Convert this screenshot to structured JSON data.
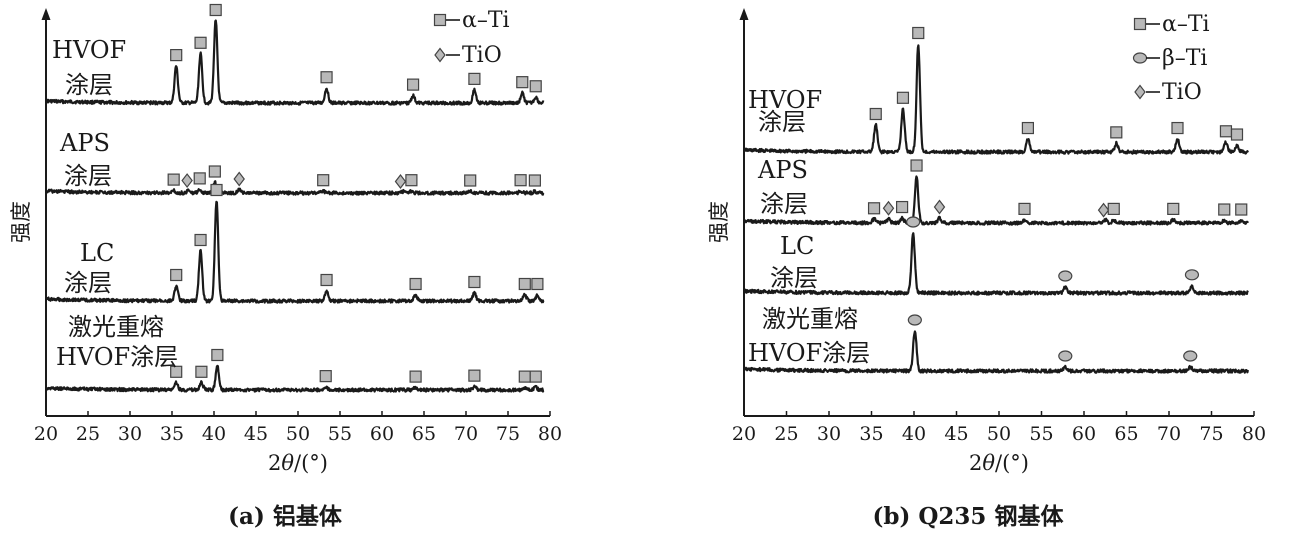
{
  "colors": {
    "ink": "#1a1a1a",
    "marker_fill": "#b9b9b9",
    "marker_stroke": "#444444"
  },
  "chart_data": [
    {
      "type": "line",
      "caption_label": "(a)",
      "caption_text": "铝基体",
      "xlabel_prefix": "2",
      "xlabel_theta": "θ",
      "xlabel_unit": "/(°)",
      "ylabel": "强度",
      "xlim": [
        20,
        80
      ],
      "xticks": [
        "20",
        "25",
        "30",
        "35",
        "40",
        "45",
        "50",
        "55",
        "60",
        "65",
        "70",
        "75",
        "80"
      ],
      "legend": [
        {
          "marker": "square",
          "label": "α–Ti"
        },
        {
          "marker": "diamond",
          "label": "TiO"
        }
      ],
      "series": [
        {
          "label_lines": [
            "HVOF",
            "涂层"
          ],
          "peaks": [
            [
              35.5,
              0.45
            ],
            [
              38.4,
              0.6
            ],
            [
              40.2,
              1.0
            ],
            [
              53.4,
              0.18
            ],
            [
              63.7,
              0.09
            ],
            [
              71.0,
              0.16
            ],
            [
              76.7,
              0.12
            ],
            [
              78.3,
              0.07
            ]
          ],
          "markers": [
            {
              "type": "square",
              "x": 35.5
            },
            {
              "type": "square",
              "x": 38.4
            },
            {
              "type": "square",
              "x": 40.2
            },
            {
              "type": "square",
              "x": 53.4
            },
            {
              "type": "square",
              "x": 63.7
            },
            {
              "type": "square",
              "x": 71.0
            },
            {
              "type": "square",
              "x": 76.7
            },
            {
              "type": "square",
              "x": 78.3
            }
          ]
        },
        {
          "label_lines": [
            "APS",
            "涂层"
          ],
          "peaks": [
            [
              35.2,
              0.08
            ],
            [
              37.0,
              0.08
            ],
            [
              38.3,
              0.12
            ],
            [
              40.1,
              0.35
            ],
            [
              43.0,
              0.1
            ],
            [
              53.0,
              0.06
            ],
            [
              62.5,
              0.05
            ],
            [
              63.5,
              0.06
            ],
            [
              70.5,
              0.05
            ],
            [
              76.5,
              0.06
            ],
            [
              78.2,
              0.05
            ]
          ],
          "markers": [
            {
              "type": "square",
              "x": 35.2
            },
            {
              "type": "diamond",
              "x": 36.8
            },
            {
              "type": "square",
              "x": 38.3
            },
            {
              "type": "square",
              "x": 40.1
            },
            {
              "type": "diamond",
              "x": 43.0
            },
            {
              "type": "square",
              "x": 53.0
            },
            {
              "type": "diamond",
              "x": 62.2
            },
            {
              "type": "square",
              "x": 63.5
            },
            {
              "type": "square",
              "x": 70.5
            },
            {
              "type": "square",
              "x": 76.5
            },
            {
              "type": "square",
              "x": 78.2
            }
          ]
        },
        {
          "label_lines": [
            "LC",
            "涂层"
          ],
          "peaks": [
            [
              35.5,
              0.15
            ],
            [
              38.4,
              0.5
            ],
            [
              40.3,
              1.0
            ],
            [
              53.4,
              0.1
            ],
            [
              64.0,
              0.06
            ],
            [
              71.0,
              0.08
            ],
            [
              77.0,
              0.06
            ],
            [
              78.5,
              0.06
            ]
          ],
          "markers": [
            {
              "type": "square",
              "x": 35.5
            },
            {
              "type": "square",
              "x": 38.4
            },
            {
              "type": "square",
              "x": 40.3
            },
            {
              "type": "square",
              "x": 53.4
            },
            {
              "type": "square",
              "x": 64.0
            },
            {
              "type": "square",
              "x": 71.0
            },
            {
              "type": "square",
              "x": 77.0
            },
            {
              "type": "square",
              "x": 78.5
            }
          ]
        },
        {
          "label_lines": [
            "激光重熔",
            "HVOF涂层"
          ],
          "peaks": [
            [
              35.5,
              0.15
            ],
            [
              38.5,
              0.15
            ],
            [
              40.4,
              0.5
            ],
            [
              53.3,
              0.06
            ],
            [
              64.0,
              0.05
            ],
            [
              71.0,
              0.07
            ],
            [
              77.0,
              0.05
            ],
            [
              78.3,
              0.05
            ]
          ],
          "markers": [
            {
              "type": "square",
              "x": 35.5
            },
            {
              "type": "square",
              "x": 38.5
            },
            {
              "type": "square",
              "x": 40.4
            },
            {
              "type": "square",
              "x": 53.3
            },
            {
              "type": "square",
              "x": 64.0
            },
            {
              "type": "square",
              "x": 71.0
            },
            {
              "type": "square",
              "x": 77.0
            },
            {
              "type": "square",
              "x": 78.3
            }
          ]
        }
      ]
    },
    {
      "type": "line",
      "caption_label": "(b) Q235",
      "caption_text": "钢基体",
      "xlabel_prefix": "2",
      "xlabel_theta": "θ",
      "xlabel_unit": "/(°)",
      "ylabel": "强度",
      "xlim": [
        20,
        80
      ],
      "xticks": [
        "20",
        "25",
        "30",
        "35",
        "40",
        "45",
        "50",
        "55",
        "60",
        "65",
        "70",
        "75",
        "80"
      ],
      "legend": [
        {
          "marker": "square",
          "label": "α–Ti"
        },
        {
          "marker": "circle",
          "label": "β–Ti"
        },
        {
          "marker": "diamond",
          "label": "TiO"
        }
      ],
      "series": [
        {
          "label_lines": [
            "HVOF",
            "涂层"
          ],
          "peaks": [
            [
              35.5,
              0.25
            ],
            [
              38.7,
              0.4
            ],
            [
              40.5,
              1.0
            ],
            [
              53.4,
              0.12
            ],
            [
              63.8,
              0.08
            ],
            [
              71.0,
              0.12
            ],
            [
              76.7,
              0.09
            ],
            [
              78.0,
              0.06
            ]
          ],
          "markers": [
            {
              "type": "square",
              "x": 35.5
            },
            {
              "type": "square",
              "x": 38.7
            },
            {
              "type": "square",
              "x": 40.5
            },
            {
              "type": "square",
              "x": 53.4
            },
            {
              "type": "square",
              "x": 63.8
            },
            {
              "type": "square",
              "x": 71.0
            },
            {
              "type": "square",
              "x": 76.7
            },
            {
              "type": "square",
              "x": 78.0
            }
          ]
        },
        {
          "label_lines": [
            "APS",
            "涂层"
          ],
          "peaks": [
            [
              35.3,
              0.06
            ],
            [
              37.0,
              0.06
            ],
            [
              38.6,
              0.08
            ],
            [
              40.3,
              0.75
            ],
            [
              43.0,
              0.08
            ],
            [
              53.0,
              0.05
            ],
            [
              62.5,
              0.05
            ],
            [
              63.5,
              0.05
            ],
            [
              70.5,
              0.05
            ],
            [
              76.5,
              0.04
            ],
            [
              78.5,
              0.04
            ]
          ],
          "markers": [
            {
              "type": "square",
              "x": 35.3
            },
            {
              "type": "diamond",
              "x": 37.0
            },
            {
              "type": "square",
              "x": 38.6
            },
            {
              "type": "square",
              "x": 40.3
            },
            {
              "type": "diamond",
              "x": 43.0
            },
            {
              "type": "square",
              "x": 53.0
            },
            {
              "type": "diamond",
              "x": 62.3
            },
            {
              "type": "square",
              "x": 63.5
            },
            {
              "type": "square",
              "x": 70.5
            },
            {
              "type": "square",
              "x": 76.5
            },
            {
              "type": "square",
              "x": 78.5
            }
          ]
        },
        {
          "label_lines": [
            "LC",
            "涂层"
          ],
          "peaks": [
            [
              39.9,
              1.0
            ],
            [
              57.8,
              0.1
            ],
            [
              72.7,
              0.12
            ]
          ],
          "markers": [
            {
              "type": "circle",
              "x": 39.9
            },
            {
              "type": "circle",
              "x": 57.8
            },
            {
              "type": "circle",
              "x": 72.7
            }
          ]
        },
        {
          "label_lines": [
            "激光重熔",
            "HVOF涂层"
          ],
          "peaks": [
            [
              40.1,
              0.8
            ],
            [
              57.8,
              0.08
            ],
            [
              72.5,
              0.08
            ]
          ],
          "markers": [
            {
              "type": "circle",
              "x": 40.1
            },
            {
              "type": "circle",
              "x": 57.8
            },
            {
              "type": "circle",
              "x": 72.5
            }
          ]
        }
      ]
    }
  ]
}
